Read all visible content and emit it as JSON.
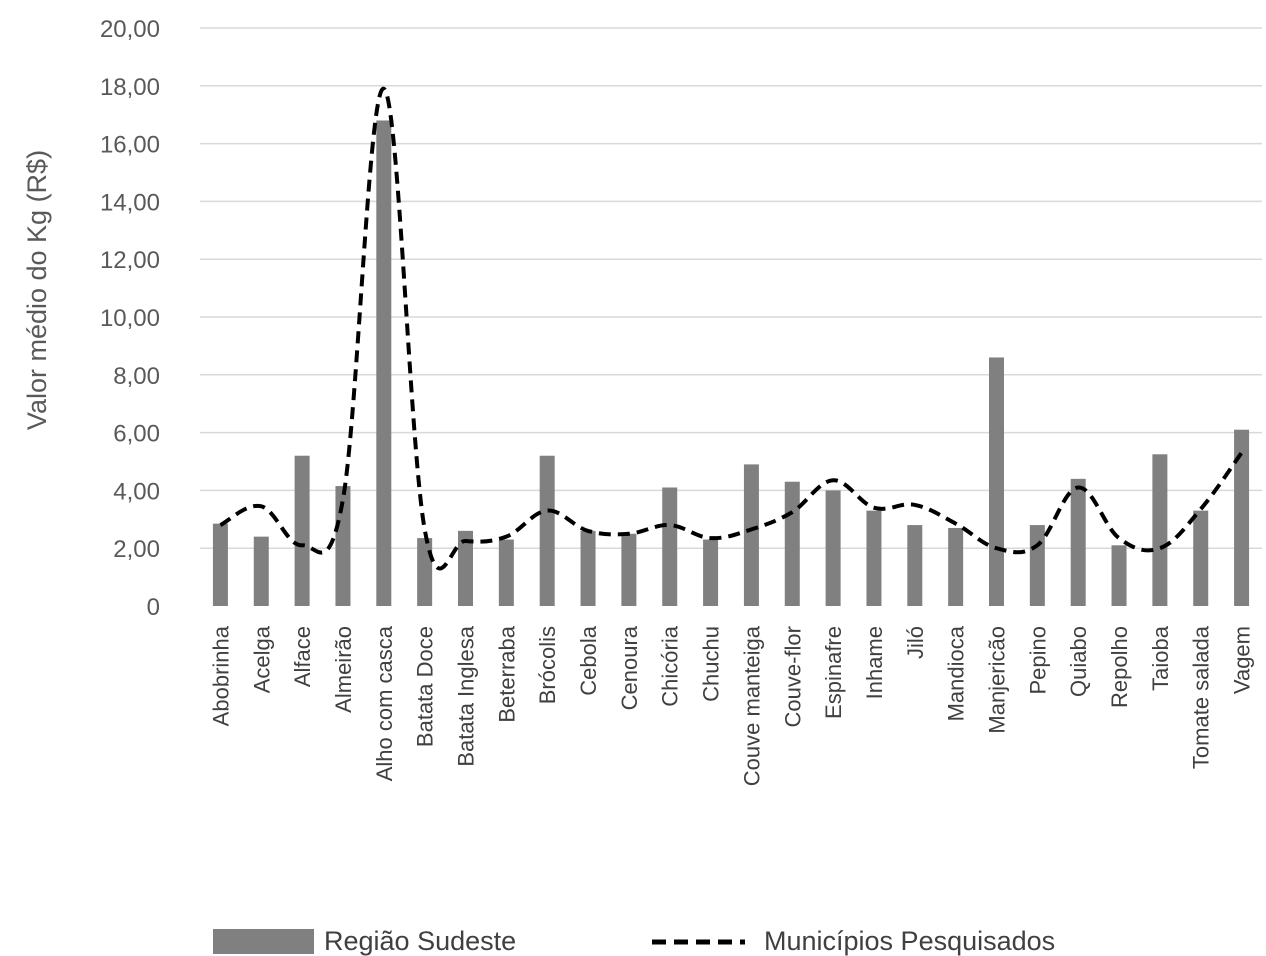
{
  "chart_data": {
    "type": "bar",
    "categories": [
      "Abobrinha",
      "Acelga",
      "Alface",
      "Almeirão",
      "Alho com casca",
      "Batata Doce",
      "Batata Inglesa",
      "Beterraba",
      "Brócolis",
      "Cebola",
      "Cenoura",
      "Chicória",
      "Chuchu",
      "Couve manteiga",
      "Couve-flor",
      "Espinafre",
      "Inhame",
      "Jiló",
      "Mandioca",
      "Manjericão",
      "Pepino",
      "Quiabo",
      "Repolho",
      "Taioba",
      "Tomate salada",
      "Vagem"
    ],
    "series": [
      {
        "name": "Região Sudeste",
        "type": "bar",
        "color": "#808080",
        "values": [
          2.85,
          2.4,
          5.2,
          4.15,
          16.8,
          2.35,
          2.6,
          2.3,
          5.2,
          2.6,
          2.5,
          4.1,
          2.3,
          4.9,
          4.3,
          4.0,
          3.3,
          2.8,
          2.7,
          8.6,
          2.8,
          4.4,
          2.1,
          5.25,
          3.3,
          6.1
        ]
      },
      {
        "name": "Municípios Pesquisados",
        "type": "line",
        "style": "dashed",
        "color": "#000000",
        "values": [
          2.8,
          3.45,
          2.1,
          3.7,
          17.9,
          2.65,
          2.25,
          2.4,
          3.3,
          2.6,
          2.5,
          2.8,
          2.35,
          2.65,
          3.25,
          4.35,
          3.4,
          3.5,
          2.85,
          2.0,
          2.1,
          4.1,
          2.35,
          2.0,
          3.35,
          5.3
        ]
      }
    ],
    "ylabel": "Valor médio do Kg  (R$)",
    "xlabel": "",
    "ylim": [
      0,
      20
    ],
    "yticks": [
      0,
      2,
      4,
      6,
      8,
      10,
      12,
      14,
      16,
      18,
      20
    ],
    "ytick_labels": [
      "0",
      "2,00",
      "4,00",
      "6,00",
      "8,00",
      "10,00",
      "12,00",
      "14,00",
      "16,00",
      "18,00",
      "20,00"
    ],
    "grid": true,
    "legend": "bottom"
  }
}
